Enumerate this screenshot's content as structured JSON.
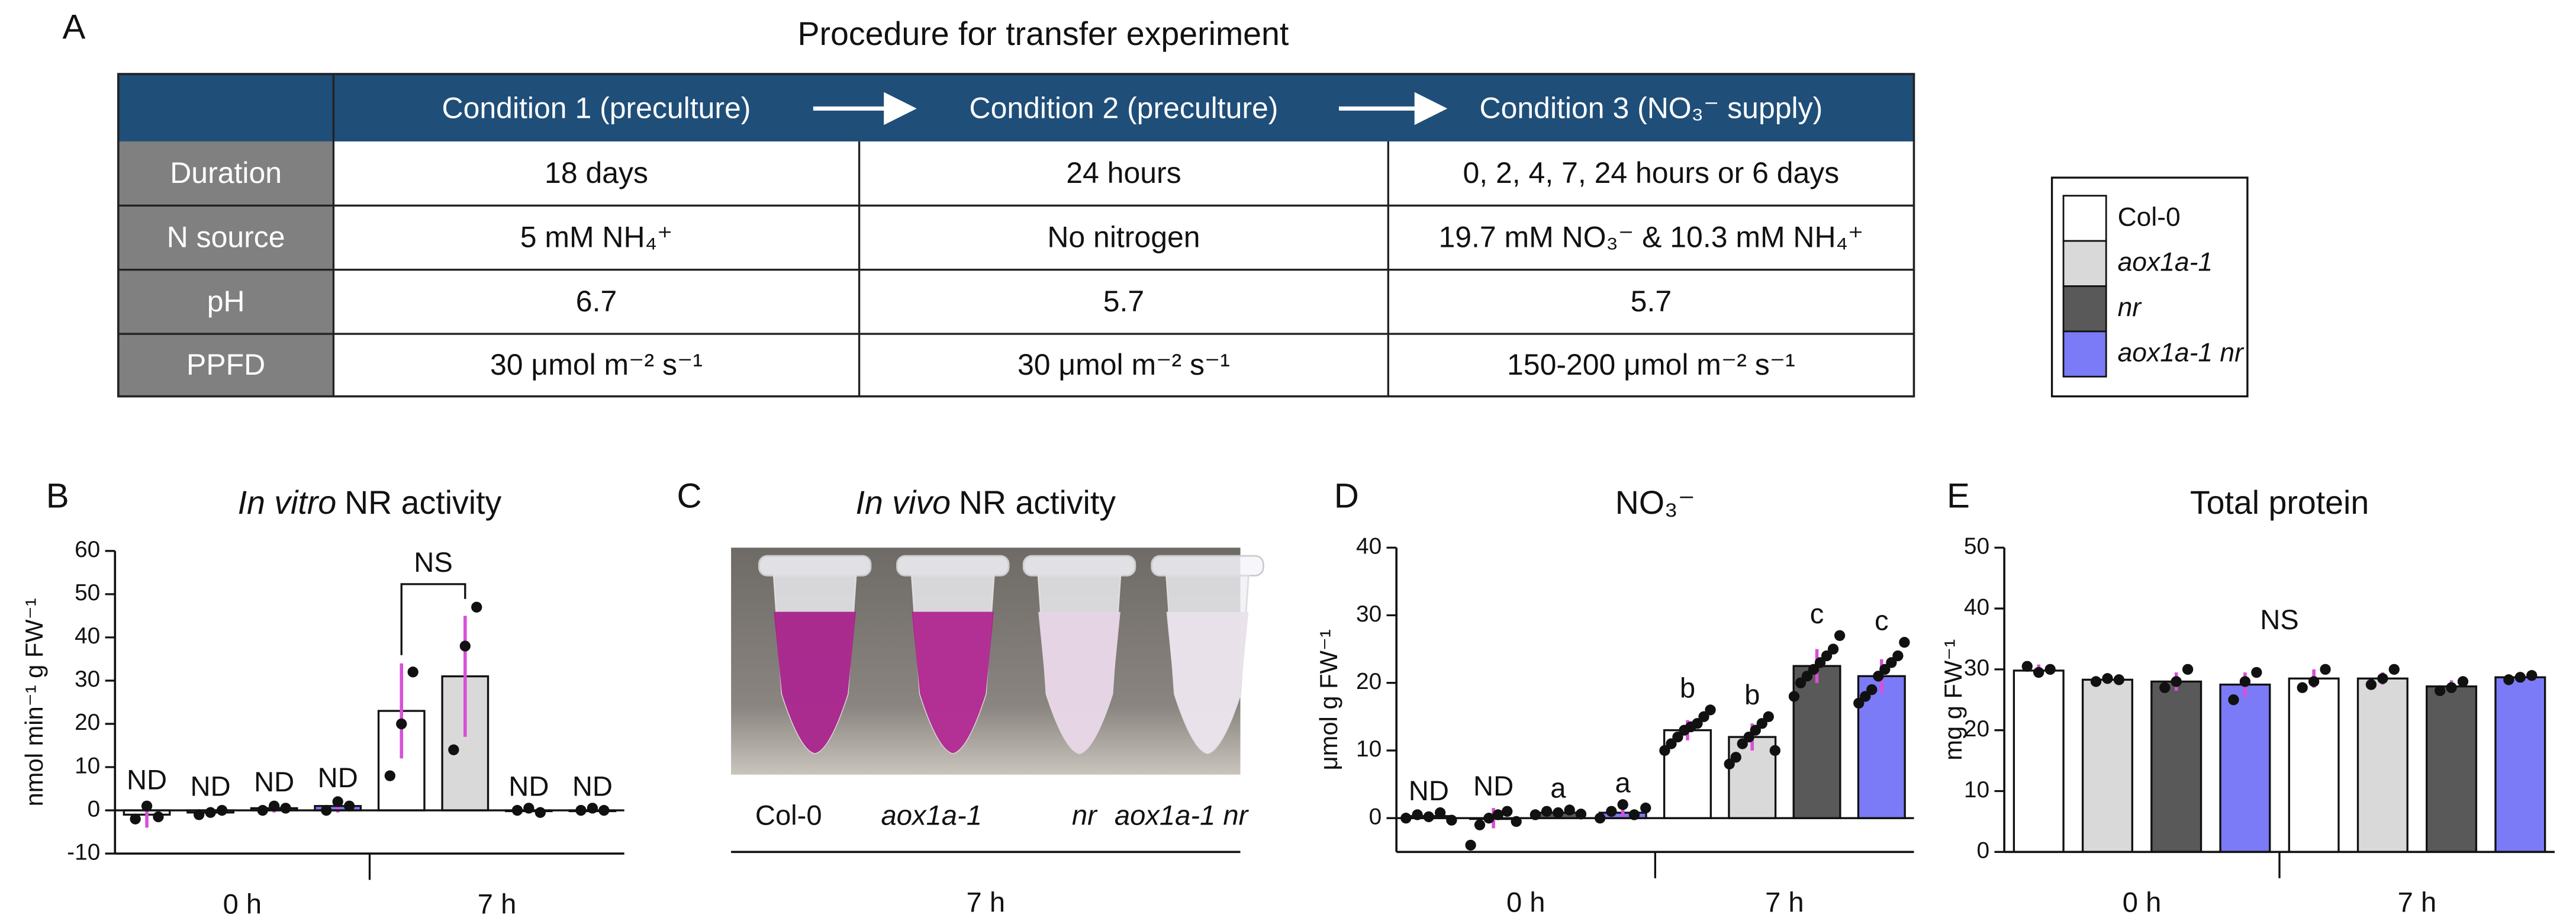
{
  "panel_labels": [
    "A",
    "B",
    "C",
    "D",
    "E"
  ],
  "table": {
    "title": "Procedure for transfer experiment",
    "columns": [
      "Condition 1 (preculture)",
      "Condition 2 (preculture)",
      "Condition 3 (NO₃⁻ supply)"
    ],
    "rows": [
      [
        "Duration",
        "18 days",
        "24 hours",
        "0, 2, 4, 7, 24 hours or 6 days"
      ],
      [
        "N source",
        "5 mM NH₄⁺",
        "No nitrogen",
        "19.7 mM NO₃⁻ & 10.3 mM NH₄⁺"
      ],
      [
        "pH",
        "6.7",
        "5.7",
        "5.7"
      ],
      [
        "PPFD",
        "30 μmol m⁻² s⁻¹",
        "30 μmol m⁻² s⁻¹",
        "150-200 μmol m⁻² s⁻¹"
      ]
    ]
  },
  "legend": [
    {
      "name": "Col-0",
      "color": "#ffffff"
    },
    {
      "name": "aox1a-1",
      "color": "#d9d9d9"
    },
    {
      "name": "nr",
      "color": "#595959"
    },
    {
      "name": "aox1a-1 nr",
      "color": "#7b7bf7"
    }
  ],
  "photo": {
    "title": [
      "In vivo",
      "NR activity"
    ],
    "labels": [
      "Col-0",
      "aox1a-1",
      "nr",
      "aox1a-1 nr"
    ],
    "group": "7 h"
  },
  "chart_data": [
    {
      "type": "bar",
      "title": [
        "In vitro",
        "NR activity"
      ],
      "y_label": "nmol min⁻¹ g FW⁻¹",
      "groups": [
        "0 h",
        "7 h"
      ],
      "ylim": [
        -10,
        60
      ],
      "yticks": [
        -10,
        0,
        10,
        20,
        30,
        40,
        50,
        60
      ],
      "bracket_label": "NS",
      "series": [
        {
          "color": "#ffffff",
          "values": [
            -1,
            23
          ],
          "errors": [
            3,
            11
          ],
          "points": [
            [
              -2,
              1,
              -1.5
            ],
            [
              8,
              20,
              32
            ]
          ],
          "bar_labels": [
            "ND",
            null
          ]
        },
        {
          "color": "#d9d9d9",
          "values": [
            -0.5,
            31
          ],
          "errors": [
            1,
            14
          ],
          "points": [
            [
              -1,
              -0.5,
              0
            ],
            [
              14,
              38,
              47
            ]
          ],
          "bar_labels": [
            "ND",
            null
          ]
        },
        {
          "color": "#595959",
          "values": [
            0.5,
            0
          ],
          "errors": [
            1,
            0.5
          ],
          "points": [
            [
              0,
              1,
              0.5
            ],
            [
              0,
              0.5,
              -0.5
            ]
          ],
          "bar_labels": [
            "ND",
            "ND"
          ]
        },
        {
          "color": "#7b7bf7",
          "values": [
            1,
            0
          ],
          "errors": [
            1.5,
            0.5
          ],
          "points": [
            [
              0,
              2,
              1
            ],
            [
              0,
              0.5,
              0
            ]
          ],
          "bar_labels": [
            "ND",
            "ND"
          ]
        }
      ]
    },
    {
      "type": "bar",
      "title": [
        "NO₃⁻"
      ],
      "y_label": "μmol g FW⁻¹",
      "groups": [
        "0 h",
        "7 h"
      ],
      "ylim": [
        -5,
        40
      ],
      "yticks": [
        0,
        10,
        20,
        30,
        40
      ],
      "series": [
        {
          "color": "#ffffff",
          "values": [
            0.3,
            13
          ],
          "errors": [
            0.5,
            1.5
          ],
          "points": [
            [
              0,
              0.5,
              0.2,
              0.8,
              -0.3
            ],
            [
              10,
              11,
              12,
              13,
              13.5,
              14,
              15,
              16
            ]
          ],
          "bar_labels": [
            "ND",
            "b"
          ]
        },
        {
          "color": "#d9d9d9",
          "values": [
            0,
            12
          ],
          "errors": [
            1.5,
            2
          ],
          "points": [
            [
              -4,
              -1,
              0,
              0.5,
              1,
              -0.5
            ],
            [
              8,
              9,
              11,
              12,
              13,
              14,
              15,
              10
            ]
          ],
          "bar_labels": [
            "ND",
            "b"
          ]
        },
        {
          "color": "#595959",
          "values": [
            0.8,
            22.5
          ],
          "errors": [
            0.4,
            2.5
          ],
          "points": [
            [
              0.5,
              1,
              0.8,
              1.2,
              0.6
            ],
            [
              18,
              20,
              21,
              22,
              23,
              24,
              25,
              27
            ]
          ],
          "bar_labels": [
            "a",
            "c"
          ]
        },
        {
          "color": "#7b7bf7",
          "values": [
            0.8,
            21
          ],
          "errors": [
            0.8,
            2.5
          ],
          "points": [
            [
              0,
              1,
              2,
              0.5,
              1.5
            ],
            [
              17,
              18,
              19,
              21,
              22,
              23,
              24,
              26
            ]
          ],
          "bar_labels": [
            "a",
            "c"
          ]
        }
      ]
    },
    {
      "type": "bar",
      "title": [
        "Total protein"
      ],
      "y_label": "mg g FW⁻¹",
      "groups": [
        "0 h",
        "7 h"
      ],
      "ylim": [
        0,
        50
      ],
      "yticks": [
        0,
        10,
        20,
        30,
        40,
        50
      ],
      "annotation": "NS",
      "series": [
        {
          "color": "#ffffff",
          "values": [
            29.8,
            28.5
          ],
          "errors": [
            1,
            1.5
          ],
          "points": [
            [
              30.5,
              29.5,
              30
            ],
            [
              27,
              28,
              30
            ]
          ]
        },
        {
          "color": "#d9d9d9",
          "values": [
            28.3,
            28.5
          ],
          "errors": [
            0.4,
            1
          ],
          "points": [
            [
              28,
              28.5,
              28.3
            ],
            [
              27.5,
              28.5,
              30
            ]
          ]
        },
        {
          "color": "#595959",
          "values": [
            28,
            27.2
          ],
          "errors": [
            1.5,
            1
          ],
          "points": [
            [
              27,
              28,
              30
            ],
            [
              26.5,
              27,
              28
            ]
          ]
        },
        {
          "color": "#7b7bf7",
          "values": [
            27.5,
            28.7
          ],
          "errors": [
            2,
            0.5
          ],
          "points": [
            [
              25,
              28,
              29.5
            ],
            [
              28.3,
              28.7,
              29
            ]
          ]
        }
      ]
    }
  ]
}
